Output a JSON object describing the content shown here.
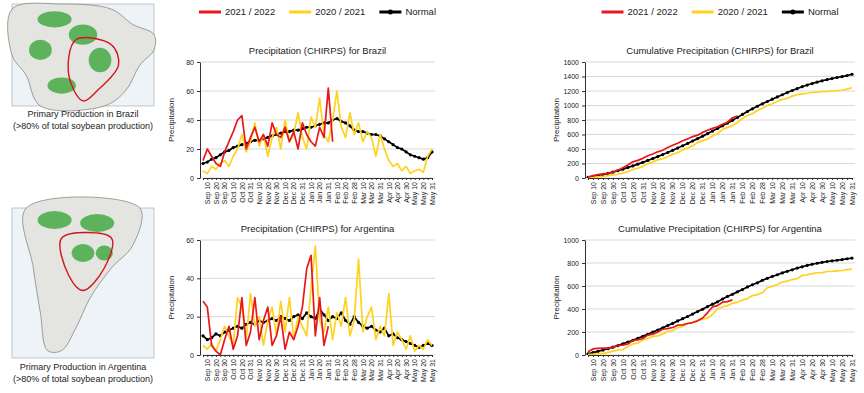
{
  "maps": [
    {
      "caption": [
        "Primary Production in Brazil",
        "(>80% of total soybean production)"
      ]
    },
    {
      "caption": [
        "Primary Production in Argentina",
        "(>80% of total soybean production)"
      ]
    }
  ],
  "chart_data": [
    {
      "type": "line",
      "title": "Precipitation (CHIRPS) for Brazil",
      "y_label": "Precipitation",
      "categories": [
        null,
        "Sep 10",
        null,
        "Sep 20",
        null,
        "Sep 30",
        null,
        "Oct 10",
        null,
        "Oct 20",
        null,
        "Oct 31",
        null,
        "Nov 10",
        null,
        "Nov 20",
        null,
        "Nov 30",
        null,
        "Dec 10",
        null,
        "Dec 20",
        null,
        "Dec 31",
        null,
        "Jan 10",
        null,
        "Jan 20",
        null,
        "Jan 31",
        null,
        "Feb 10",
        null,
        "Feb 20",
        null,
        "Feb 28",
        null,
        "Mar 10",
        null,
        "Mar 20",
        null,
        "Mar 31",
        null,
        "Apr 10",
        null,
        "Apr 20",
        null,
        "Apr 30",
        null,
        "May 10",
        null,
        "May 20",
        null,
        "May 31"
      ],
      "ylim": [
        0,
        80
      ],
      "yticks": [
        0,
        20,
        40,
        60,
        80
      ],
      "grid": true,
      "legend": "top",
      "series": [
        {
          "name": "2021 / 2022",
          "color": "#e8171c",
          "values": [
            12,
            20,
            15,
            10,
            8,
            18,
            25,
            32,
            40,
            43,
            20,
            28,
            35,
            25,
            30,
            22,
            38,
            30,
            28,
            35,
            25,
            32,
            20,
            38,
            30,
            25,
            22,
            35,
            28,
            62,
            25,
            null,
            null,
            null,
            null,
            null,
            null,
            null,
            null,
            null,
            null,
            null,
            null,
            null,
            null,
            null,
            null,
            null,
            null,
            null,
            null,
            null,
            null,
            null
          ]
        },
        {
          "name": "2020 / 2021",
          "color": "#ffd21f",
          "values": [
            5,
            3,
            8,
            6,
            10,
            12,
            8,
            15,
            20,
            30,
            18,
            25,
            38,
            22,
            30,
            15,
            28,
            35,
            20,
            40,
            25,
            30,
            45,
            28,
            20,
            42,
            35,
            55,
            30,
            25,
            40,
            60,
            35,
            28,
            45,
            30,
            38,
            25,
            32,
            28,
            15,
            30,
            20,
            12,
            8,
            10,
            5,
            8,
            3,
            5,
            6,
            4,
            15,
            20
          ]
        },
        {
          "name": "Normal",
          "color": "#000000",
          "marker": "circle",
          "values": [
            10,
            11,
            13,
            14,
            16,
            18,
            19,
            21,
            22,
            23,
            24,
            25,
            26,
            26,
            27,
            28,
            29,
            30,
            31,
            32,
            32,
            33,
            33,
            34,
            35,
            35,
            36,
            37,
            38,
            38,
            40,
            41,
            39,
            38,
            36,
            33,
            32,
            32,
            31,
            30,
            30,
            29,
            27,
            25,
            23,
            21,
            20,
            18,
            16,
            15,
            14,
            13,
            14,
            18
          ]
        }
      ]
    },
    {
      "type": "line",
      "title": "Cumulative Precipitation (CHIRPS) for Brazil",
      "y_label": "Precipitation",
      "categories": [
        null,
        "Sep 10",
        null,
        "Sep 20",
        null,
        "Sep 30",
        null,
        "Oct 10",
        null,
        "Oct 20",
        null,
        "Oct 31",
        null,
        "Nov 10",
        null,
        "Nov 20",
        null,
        "Nov 30",
        null,
        "Dec 10",
        null,
        "Dec 20",
        null,
        "Dec 31",
        null,
        "Jan 10",
        null,
        "Jan 20",
        null,
        "Jan 31",
        null,
        "Feb 10",
        null,
        "Feb 20",
        null,
        "Feb 28",
        null,
        "Mar 10",
        null,
        "Mar 20",
        null,
        "Mar 31",
        null,
        "Apr 10",
        null,
        "Apr 20",
        null,
        "Apr 30",
        null,
        "May 10",
        null,
        "May 20",
        null,
        "May 31"
      ],
      "ylim": [
        0,
        1600
      ],
      "yticks": [
        0,
        200,
        400,
        600,
        800,
        1000,
        1200,
        1400,
        1600
      ],
      "grid": true,
      "legend": "top",
      "series": [
        {
          "name": "2021 / 2022",
          "color": "#e8171c",
          "values": [
            12,
            32,
            47,
            57,
            65,
            83,
            108,
            140,
            180,
            223,
            243,
            271,
            306,
            331,
            361,
            383,
            421,
            451,
            479,
            514,
            539,
            571,
            591,
            629,
            659,
            684,
            706,
            741,
            769,
            831,
            856,
            null,
            null,
            null,
            null,
            null,
            null,
            null,
            null,
            null,
            null,
            null,
            null,
            null,
            null,
            null,
            null,
            null,
            null,
            null,
            null,
            null,
            null,
            null
          ]
        },
        {
          "name": "2020 / 2021",
          "color": "#ffd21f",
          "values": [
            5,
            8,
            16,
            22,
            32,
            44,
            52,
            67,
            87,
            117,
            135,
            160,
            198,
            220,
            250,
            265,
            293,
            328,
            348,
            388,
            413,
            443,
            488,
            516,
            536,
            578,
            613,
            668,
            698,
            723,
            763,
            823,
            858,
            886,
            931,
            961,
            999,
            1024,
            1056,
            1084,
            1099,
            1129,
            1149,
            1161,
            1169,
            1179,
            1184,
            1192,
            1195,
            1200,
            1206,
            1210,
            1225,
            1245
          ]
        },
        {
          "name": "Normal",
          "color": "#000000",
          "marker": "circle",
          "values": [
            10,
            21,
            34,
            48,
            64,
            82,
            101,
            122,
            144,
            167,
            191,
            216,
            242,
            268,
            295,
            323,
            352,
            382,
            413,
            445,
            477,
            510,
            543,
            577,
            612,
            647,
            683,
            720,
            758,
            796,
            836,
            877,
            916,
            954,
            990,
            1023,
            1055,
            1087,
            1118,
            1148,
            1178,
            1207,
            1234,
            1259,
            1282,
            1303,
            1323,
            1341,
            1357,
            1372,
            1386,
            1399,
            1413,
            1431
          ]
        }
      ]
    },
    {
      "type": "line",
      "title": "Precipitation (CHIRPS) for Argentina",
      "y_label": "Precipitation",
      "categories": [
        null,
        "Sep 10",
        null,
        "Sep 20",
        null,
        "Sep 30",
        null,
        "Oct 10",
        null,
        "Oct 20",
        null,
        "Oct 31",
        null,
        "Nov 10",
        null,
        "Nov 20",
        null,
        "Nov 30",
        null,
        "Dec 10",
        null,
        "Dec 20",
        null,
        "Dec 31",
        null,
        "Jan 10",
        null,
        "Jan 20",
        null,
        "Jan 31",
        null,
        "Feb 10",
        null,
        "Feb 20",
        null,
        "Feb 28",
        null,
        "Mar 10",
        null,
        "Mar 20",
        null,
        "Mar 31",
        null,
        "Apr 10",
        null,
        "Apr 20",
        null,
        "Apr 30",
        null,
        "May 10",
        null,
        "May 20",
        null,
        "May 31"
      ],
      "ylim": [
        0,
        60
      ],
      "yticks": [
        0,
        20,
        40,
        60
      ],
      "grid": true,
      "series": [
        {
          "name": "2021 / 2022",
          "color": "#e8171c",
          "values": [
            28,
            25,
            5,
            2,
            0,
            8,
            15,
            3,
            10,
            30,
            5,
            12,
            30,
            8,
            18,
            25,
            5,
            10,
            20,
            3,
            12,
            8,
            15,
            25,
            45,
            52,
            10,
            30,
            5,
            15,
            null,
            null,
            null,
            null,
            null,
            null,
            null,
            null,
            null,
            null,
            null,
            null,
            null,
            null,
            null,
            null,
            null,
            null,
            null,
            null,
            null,
            null,
            null,
            null
          ]
        },
        {
          "name": "2020 / 2021",
          "color": "#ffd21f",
          "values": [
            5,
            3,
            6,
            2,
            8,
            15,
            10,
            5,
            30,
            25,
            8,
            32,
            15,
            20,
            5,
            18,
            25,
            10,
            28,
            12,
            30,
            8,
            20,
            15,
            10,
            35,
            57,
            18,
            12,
            25,
            8,
            22,
            15,
            30,
            10,
            18,
            50,
            12,
            20,
            25,
            8,
            15,
            10,
            32,
            5,
            12,
            8,
            3,
            10,
            2,
            5,
            3,
            8,
            5
          ]
        },
        {
          "name": "Normal",
          "color": "#000000",
          "marker": "circle",
          "values": [
            10,
            8,
            9,
            11,
            10,
            12,
            13,
            14,
            15,
            14,
            16,
            17,
            16,
            18,
            17,
            18,
            19,
            18,
            20,
            19,
            18,
            20,
            21,
            19,
            22,
            20,
            19,
            24,
            21,
            18,
            20,
            19,
            22,
            18,
            16,
            20,
            17,
            15,
            14,
            15,
            13,
            12,
            14,
            10,
            11,
            9,
            8,
            7,
            6,
            5,
            4,
            5,
            6,
            5
          ]
        }
      ]
    },
    {
      "type": "line",
      "title": "Cumulative Precipitation (CHIRPS) for Argentina",
      "y_label": "Precipitation",
      "categories": [
        null,
        "Sep 10",
        null,
        "Sep 20",
        null,
        "Sep 30",
        null,
        "Oct 10",
        null,
        "Oct 20",
        null,
        "Oct 31",
        null,
        "Nov 10",
        null,
        "Nov 20",
        null,
        "Nov 30",
        null,
        "Dec 10",
        null,
        "Dec 20",
        null,
        "Dec 31",
        null,
        "Jan 10",
        null,
        "Jan 20",
        null,
        "Jan 31",
        null,
        "Feb 10",
        null,
        "Feb 20",
        null,
        "Feb 28",
        null,
        "Mar 10",
        null,
        "Mar 20",
        null,
        "Mar 31",
        null,
        "Apr 10",
        null,
        "Apr 20",
        null,
        "Apr 30",
        null,
        "May 10",
        null,
        "May 20",
        null,
        "May 31"
      ],
      "ylim": [
        0,
        1000
      ],
      "yticks": [
        0,
        200,
        400,
        600,
        800,
        1000
      ],
      "grid": true,
      "series": [
        {
          "name": "2021 / 2022",
          "color": "#e8171c",
          "values": [
            28,
            53,
            58,
            60,
            60,
            68,
            83,
            86,
            96,
            126,
            131,
            143,
            173,
            181,
            199,
            224,
            229,
            239,
            259,
            262,
            274,
            282,
            297,
            322,
            367,
            419,
            429,
            459,
            464,
            479,
            null,
            null,
            null,
            null,
            null,
            null,
            null,
            null,
            null,
            null,
            null,
            null,
            null,
            null,
            null,
            null,
            null,
            null,
            null,
            null,
            null,
            null,
            null,
            null
          ]
        },
        {
          "name": "2020 / 2021",
          "color": "#ffd21f",
          "values": [
            4,
            7,
            12,
            14,
            21,
            34,
            43,
            48,
            74,
            96,
            103,
            131,
            144,
            162,
            166,
            182,
            204,
            213,
            238,
            248,
            275,
            282,
            299,
            312,
            321,
            352,
            402,
            418,
            429,
            451,
            458,
            477,
            490,
            517,
            525,
            541,
            585,
            596,
            613,
            635,
            642,
            656,
            664,
            693,
            697,
            708,
            715,
            717,
            726,
            728,
            732,
            735,
            742,
            746
          ]
        },
        {
          "name": "Normal",
          "color": "#000000",
          "marker": "circle",
          "values": [
            10,
            20,
            31,
            43,
            55,
            68,
            82,
            97,
            113,
            128,
            145,
            163,
            180,
            199,
            217,
            236,
            256,
            275,
            296,
            316,
            335,
            356,
            378,
            398,
            421,
            442,
            462,
            487,
            509,
            528,
            549,
            569,
            592,
            611,
            628,
            649,
            667,
            683,
            698,
            714,
            728,
            741,
            756,
            767,
            779,
            789,
            798,
            806,
            813,
            819,
            824,
            830,
            837,
            843
          ]
        }
      ]
    }
  ]
}
